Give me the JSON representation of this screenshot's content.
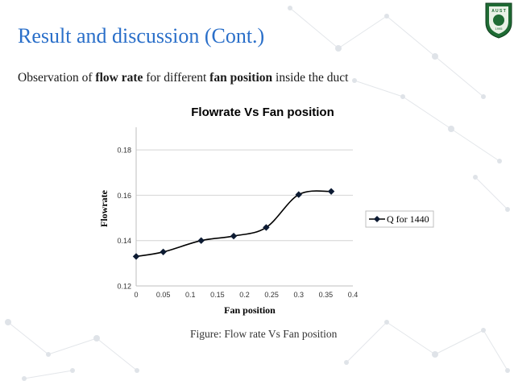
{
  "slide": {
    "title": "Result and discussion (Cont.)",
    "subtitle_parts": {
      "a": "Observation of ",
      "b": "flow rate",
      "c": " for different ",
      "d": "fan position",
      "e": " inside the duct"
    },
    "caption": "Figure: Flow rate Vs Fan position",
    "logo_text": "A U S T",
    "logo_year": "1995"
  },
  "chart_data": {
    "type": "line",
    "title": "Flowrate Vs Fan position",
    "xlabel": "Fan position",
    "ylabel": "Flowrate",
    "xlim": [
      0,
      0.4
    ],
    "ylim": [
      0.12,
      0.19
    ],
    "xticks": [
      "0",
      "0.05",
      "0.1",
      "0.15",
      "0.2",
      "0.25",
      "0.3",
      "0.35",
      "0.4"
    ],
    "yticks": [
      "0.12",
      "0.14",
      "0.16",
      "0.18"
    ],
    "xtick_values": [
      0,
      0.05,
      0.1,
      0.15,
      0.2,
      0.25,
      0.3,
      0.35,
      0.4
    ],
    "ytick_values": [
      0.12,
      0.14,
      0.16,
      0.18
    ],
    "grid": true,
    "legend_position": "right",
    "series": [
      {
        "name": "Q for 1440",
        "color": "#000000",
        "x": [
          0,
          0.05,
          0.12,
          0.18,
          0.24,
          0.3,
          0.36
        ],
        "y": [
          0.133,
          0.135,
          0.14,
          0.142,
          0.1458,
          0.1603,
          0.1617
        ]
      }
    ]
  }
}
